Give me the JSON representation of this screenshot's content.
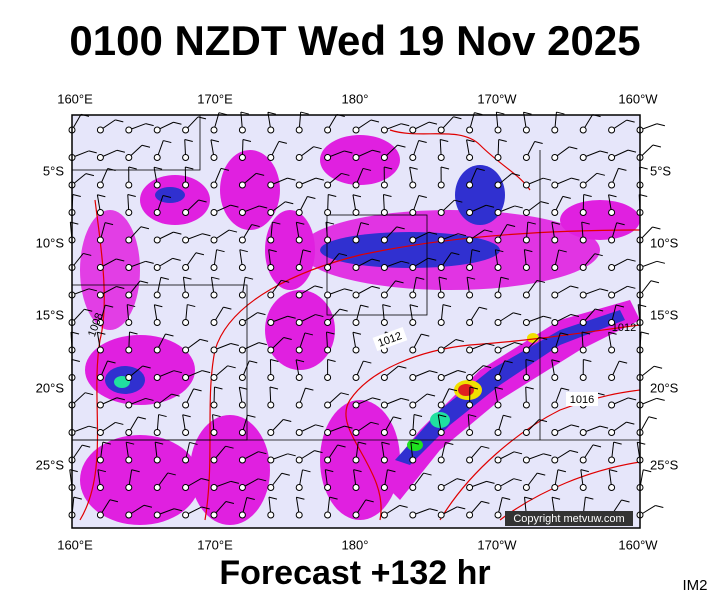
{
  "title": "0100 NZDT Wed 19 Nov 2025",
  "map": {
    "lon_labels": [
      "160°E",
      "170°E",
      "180°",
      "170°W",
      "160°W"
    ],
    "lat_labels": [
      "5°S",
      "10°S",
      "15°S",
      "20°S",
      "25°S"
    ],
    "isobar_labels": [
      "1008",
      "1012",
      "1016",
      "1012"
    ],
    "copyright": "Copyright metvuw.com"
  },
  "footer": {
    "forecast": "Forecast +132 hr",
    "image_id": "IM2"
  }
}
